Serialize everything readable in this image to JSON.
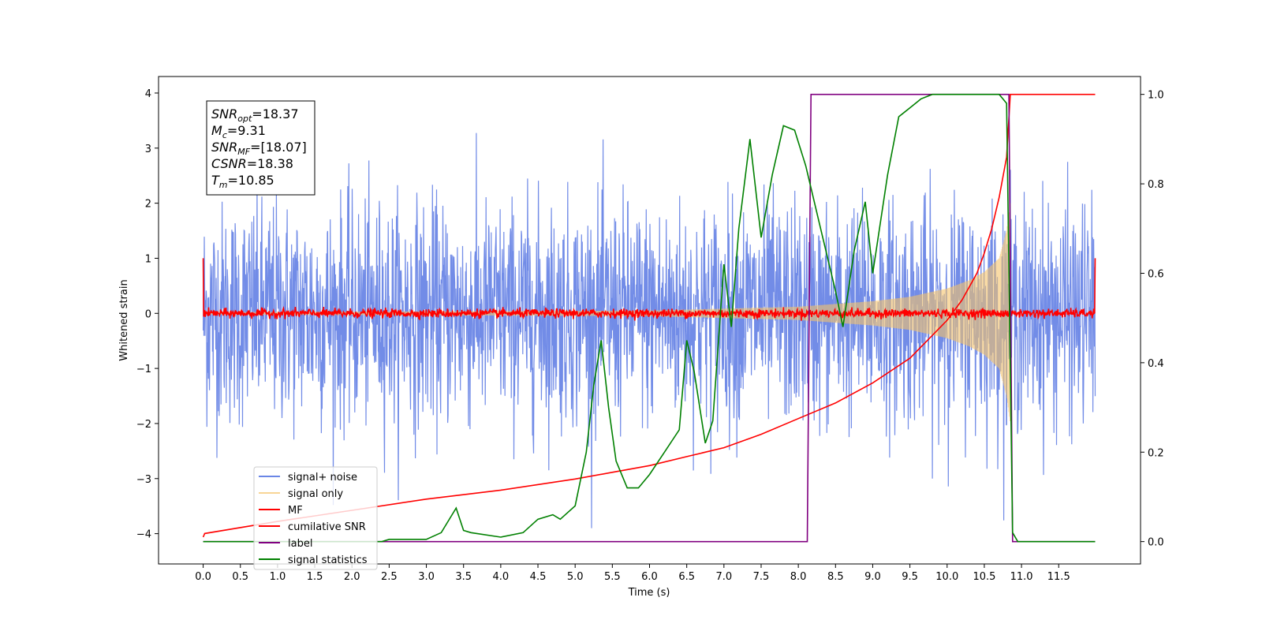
{
  "chart_data": {
    "type": "line",
    "xlabel": "Time (s)",
    "ylabel": "Whitened strain",
    "xlim": [
      -0.6,
      12.6
    ],
    "ylim": [
      -4.55,
      4.3
    ],
    "y2lim": [
      -0.05,
      1.04
    ],
    "x_ticks": [
      "0.0",
      "0.5",
      "1.0",
      "1.5",
      "2.0",
      "2.5",
      "3.0",
      "3.5",
      "4.0",
      "4.5",
      "5.0",
      "5.5",
      "6.0",
      "6.5",
      "7.0",
      "7.5",
      "8.0",
      "8.5",
      "9.0",
      "9.5",
      "10.0",
      "10.5",
      "11.0",
      "11.5"
    ],
    "y_ticks": [
      "−4",
      "−3",
      "−2",
      "−1",
      "0",
      "1",
      "2",
      "3",
      "4"
    ],
    "y2_ticks": [
      "0.0",
      "0.2",
      "0.4",
      "0.6",
      "0.8",
      "1.0"
    ],
    "grid": false,
    "legend_position": "lower-left",
    "info_box": [
      {
        "symbol": "SNR",
        "sub": "opt",
        "value": "=18.37"
      },
      {
        "symbol": "M",
        "sub": "c",
        "value": "=9.31"
      },
      {
        "symbol": "SNR",
        "sub": "MF",
        "value": "=[18.07]"
      },
      {
        "symbol": "CSNR",
        "sub": "",
        "value": "=18.38"
      },
      {
        "symbol": "T",
        "sub": "m",
        "value": "=10.85"
      }
    ],
    "series": [
      {
        "name": "signal+ noise",
        "axis": "left",
        "color": "#6a86e6",
        "kind": "noise",
        "x_range": [
          0.0,
          11.99
        ],
        "amplitude_std": 1.0,
        "peak_abs": 3.9
      },
      {
        "name": "signal only",
        "axis": "left",
        "color": "#f5c36a",
        "kind": "chirp",
        "x_range": [
          0.0,
          10.85
        ],
        "envelope": {
          "x": [
            0.0,
            6.0,
            8.0,
            9.0,
            9.5,
            10.0,
            10.3,
            10.5,
            10.7,
            10.8,
            10.85
          ],
          "y": [
            0.02,
            0.05,
            0.12,
            0.22,
            0.3,
            0.45,
            0.6,
            0.75,
            1.0,
            1.5,
            2.0
          ]
        }
      },
      {
        "name": "MF",
        "axis": "left",
        "color": "#ff0000",
        "kind": "mf",
        "x_range": [
          0.0,
          11.99
        ],
        "edge_value": 1.0,
        "noise_std": 0.04
      },
      {
        "name": "cumilative SNR",
        "axis": "right",
        "color": "#ff0000",
        "x": [
          0.0,
          0.02,
          1.0,
          2.0,
          3.0,
          4.0,
          5.0,
          5.5,
          6.0,
          6.5,
          7.0,
          7.5,
          8.0,
          8.5,
          9.0,
          9.5,
          10.0,
          10.2,
          10.4,
          10.5,
          10.6,
          10.7,
          10.8,
          10.85,
          11.99
        ],
        "y": [
          0.01,
          0.018,
          0.045,
          0.07,
          0.095,
          0.115,
          0.14,
          0.155,
          0.17,
          0.19,
          0.21,
          0.24,
          0.275,
          0.31,
          0.355,
          0.41,
          0.495,
          0.54,
          0.6,
          0.645,
          0.7,
          0.77,
          0.86,
          1.0,
          1.0
        ]
      },
      {
        "name": "label",
        "axis": "right",
        "color": "#800080",
        "x": [
          0.0,
          8.12,
          8.17,
          10.83,
          10.88,
          11.99
        ],
        "y": [
          0.0,
          0.0,
          1.0,
          1.0,
          0.0,
          0.0
        ]
      },
      {
        "name": "signal statistics",
        "axis": "right",
        "color": "#008000",
        "x": [
          0.0,
          2.4,
          2.5,
          3.0,
          3.2,
          3.4,
          3.5,
          3.6,
          4.0,
          4.3,
          4.5,
          4.7,
          4.8,
          5.0,
          5.15,
          5.25,
          5.35,
          5.45,
          5.55,
          5.7,
          5.85,
          6.0,
          6.2,
          6.4,
          6.5,
          6.6,
          6.75,
          6.85,
          7.0,
          7.1,
          7.2,
          7.35,
          7.5,
          7.65,
          7.8,
          7.95,
          8.1,
          8.3,
          8.5,
          8.6,
          8.75,
          8.9,
          9.0,
          9.2,
          9.35,
          9.5,
          9.65,
          9.8,
          10.0,
          10.3,
          10.5,
          10.7,
          10.8,
          10.88,
          10.95,
          11.99
        ],
        "y": [
          0.0,
          0.0,
          0.005,
          0.005,
          0.02,
          0.075,
          0.025,
          0.02,
          0.01,
          0.02,
          0.05,
          0.06,
          0.05,
          0.08,
          0.2,
          0.35,
          0.45,
          0.3,
          0.18,
          0.12,
          0.12,
          0.15,
          0.2,
          0.25,
          0.45,
          0.38,
          0.22,
          0.27,
          0.62,
          0.48,
          0.7,
          0.9,
          0.68,
          0.82,
          0.93,
          0.92,
          0.84,
          0.7,
          0.56,
          0.48,
          0.65,
          0.76,
          0.6,
          0.82,
          0.95,
          0.97,
          0.99,
          1.0,
          1.0,
          1.0,
          1.0,
          1.0,
          0.98,
          0.02,
          0.0,
          0.0
        ]
      }
    ]
  }
}
